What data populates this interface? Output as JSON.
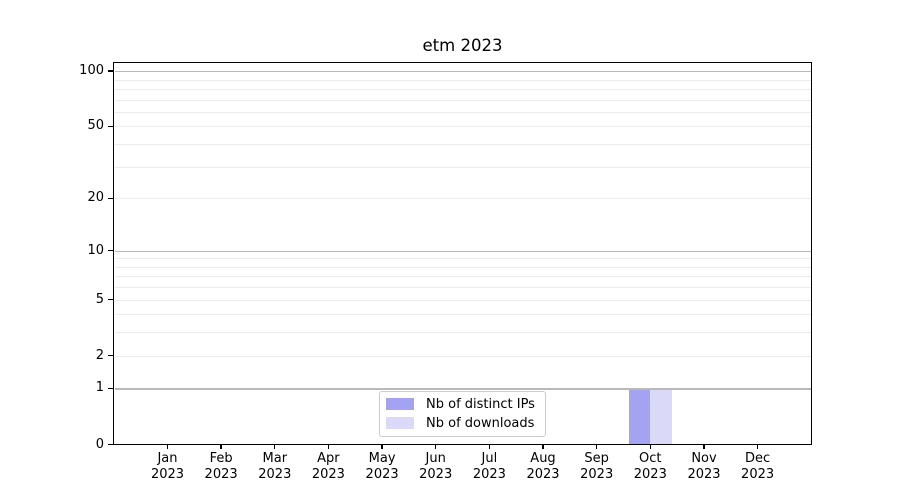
{
  "chart_data": {
    "type": "bar",
    "title": "etm 2023",
    "y_scale": "log1p",
    "ylim": [
      0,
      112
    ],
    "grid": "horizontal",
    "legend_position": "lower center",
    "categories": [
      {
        "month": "Jan",
        "year": "2023"
      },
      {
        "month": "Feb",
        "year": "2023"
      },
      {
        "month": "Mar",
        "year": "2023"
      },
      {
        "month": "Apr",
        "year": "2023"
      },
      {
        "month": "May",
        "year": "2023"
      },
      {
        "month": "Jun",
        "year": "2023"
      },
      {
        "month": "Jul",
        "year": "2023"
      },
      {
        "month": "Aug",
        "year": "2023"
      },
      {
        "month": "Sep",
        "year": "2023"
      },
      {
        "month": "Oct",
        "year": "2023"
      },
      {
        "month": "Nov",
        "year": "2023"
      },
      {
        "month": "Dec",
        "year": "2023"
      }
    ],
    "series": [
      {
        "name": "Nb of distinct IPs",
        "color": "#a3a3f2",
        "values": [
          0,
          0,
          0,
          0,
          0,
          0,
          0,
          0,
          0,
          1,
          0,
          0
        ]
      },
      {
        "name": "Nb of downloads",
        "color": "#dadaf8",
        "values": [
          0,
          0,
          0,
          0,
          0,
          0,
          0,
          0,
          0,
          1,
          0,
          0
        ]
      }
    ],
    "y_tick_labels": [
      {
        "value": 0,
        "label": "0"
      },
      {
        "value": 1,
        "label": "1"
      },
      {
        "value": 2,
        "label": "2"
      },
      {
        "value": 5,
        "label": "5"
      },
      {
        "value": 10,
        "label": "10"
      },
      {
        "value": 20,
        "label": "20"
      },
      {
        "value": 50,
        "label": "50"
      },
      {
        "value": 100,
        "label": "100"
      }
    ],
    "y_major_gridlines": [
      1,
      10,
      100
    ],
    "y_minor_gridlines": [
      2,
      3,
      4,
      5,
      6,
      7,
      8,
      9,
      20,
      30,
      40,
      50,
      60,
      70,
      80,
      90
    ]
  },
  "colors": {
    "background": "#ffffff",
    "spine": "#000000",
    "grid_major": "#b9b9b9",
    "grid_minor": "#ebebeb",
    "legend_border": "#cbcbcb",
    "text": "#000000"
  }
}
